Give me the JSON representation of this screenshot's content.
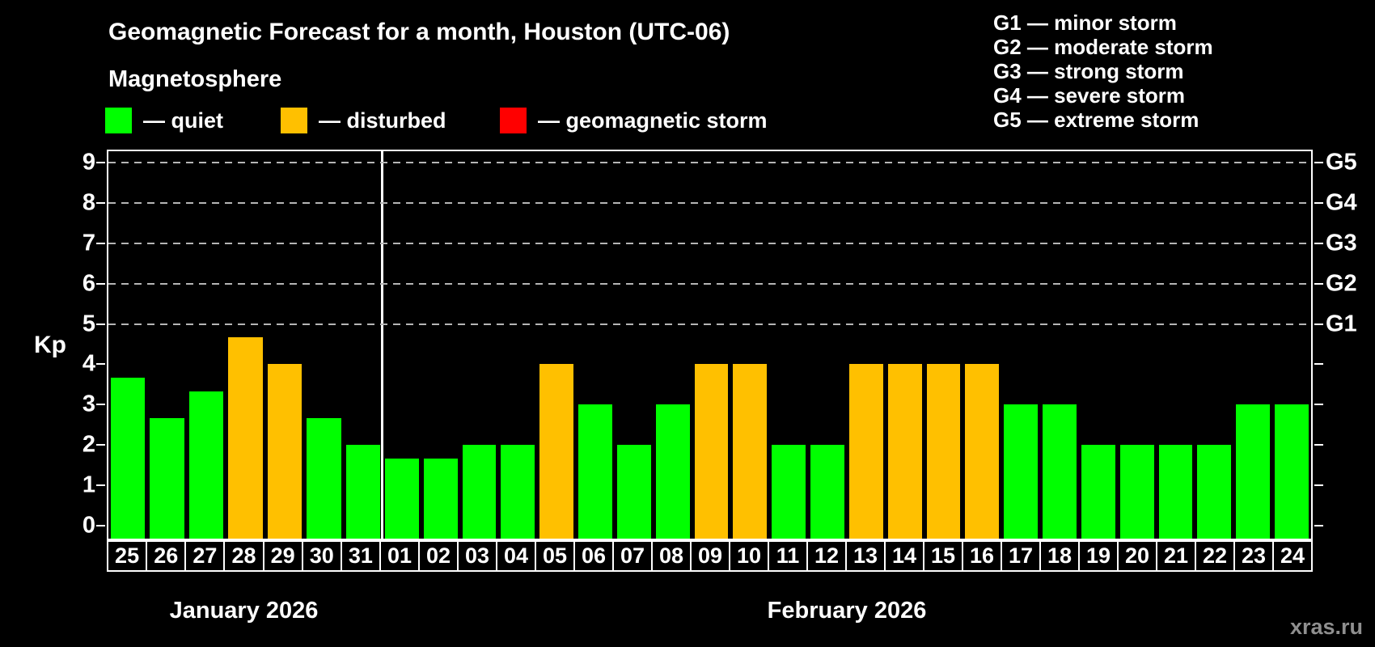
{
  "header": {
    "title": "Geomagnetic Forecast for a month, Houston (UTC-06)"
  },
  "legend": {
    "title": "Magnetosphere",
    "items": [
      {
        "label": "— quiet",
        "status": "quiet"
      },
      {
        "label": "— disturbed",
        "status": "disturbed"
      },
      {
        "label": "— geomagnetic storm",
        "status": "storm"
      }
    ]
  },
  "g_legend": {
    "items": [
      "G1 — minor storm",
      "G2 — moderate storm",
      "G3 — strong storm",
      "G4 — severe storm",
      "G5 — extreme storm"
    ]
  },
  "watermark": "xras.ru",
  "chart_data": {
    "type": "bar",
    "title": "Geomagnetic Forecast for a month, Houston (UTC-06)",
    "ylabel": "Kp",
    "ylim": [
      0,
      9
    ],
    "y_ticks": [
      0,
      1,
      2,
      3,
      4,
      5,
      6,
      7,
      8,
      9
    ],
    "gridlines": [
      5,
      6,
      7,
      8,
      9
    ],
    "grid": "dashed",
    "legend_position": "top",
    "g_scale": [
      {
        "kp": 5,
        "label": "G1"
      },
      {
        "kp": 6,
        "label": "G2"
      },
      {
        "kp": 7,
        "label": "G3"
      },
      {
        "kp": 8,
        "label": "G4"
      },
      {
        "kp": 9,
        "label": "G5"
      }
    ],
    "status_colors": {
      "quiet": "#00ff00",
      "disturbed": "#ffc000",
      "storm": "#ff0000"
    },
    "months": [
      {
        "label": "January 2026",
        "days": [
          {
            "day": "25",
            "kp": 3.67,
            "status": "quiet"
          },
          {
            "day": "26",
            "kp": 2.67,
            "status": "quiet"
          },
          {
            "day": "27",
            "kp": 3.33,
            "status": "quiet"
          },
          {
            "day": "28",
            "kp": 4.67,
            "status": "disturbed"
          },
          {
            "day": "29",
            "kp": 4.0,
            "status": "disturbed"
          },
          {
            "day": "30",
            "kp": 2.67,
            "status": "quiet"
          },
          {
            "day": "31",
            "kp": 2.0,
            "status": "quiet"
          }
        ]
      },
      {
        "label": "February 2026",
        "days": [
          {
            "day": "01",
            "kp": 1.67,
            "status": "quiet"
          },
          {
            "day": "02",
            "kp": 1.67,
            "status": "quiet"
          },
          {
            "day": "03",
            "kp": 2.0,
            "status": "quiet"
          },
          {
            "day": "04",
            "kp": 2.0,
            "status": "quiet"
          },
          {
            "day": "05",
            "kp": 4.0,
            "status": "disturbed"
          },
          {
            "day": "06",
            "kp": 3.0,
            "status": "quiet"
          },
          {
            "day": "07",
            "kp": 2.0,
            "status": "quiet"
          },
          {
            "day": "08",
            "kp": 3.0,
            "status": "quiet"
          },
          {
            "day": "09",
            "kp": 4.0,
            "status": "disturbed"
          },
          {
            "day": "10",
            "kp": 4.0,
            "status": "disturbed"
          },
          {
            "day": "11",
            "kp": 2.0,
            "status": "quiet"
          },
          {
            "day": "12",
            "kp": 2.0,
            "status": "quiet"
          },
          {
            "day": "13",
            "kp": 4.0,
            "status": "disturbed"
          },
          {
            "day": "14",
            "kp": 4.0,
            "status": "disturbed"
          },
          {
            "day": "15",
            "kp": 4.0,
            "status": "disturbed"
          },
          {
            "day": "16",
            "kp": 4.0,
            "status": "disturbed"
          },
          {
            "day": "17",
            "kp": 3.0,
            "status": "quiet"
          },
          {
            "day": "18",
            "kp": 3.0,
            "status": "quiet"
          },
          {
            "day": "19",
            "kp": 2.0,
            "status": "quiet"
          },
          {
            "day": "20",
            "kp": 2.0,
            "status": "quiet"
          },
          {
            "day": "21",
            "kp": 2.0,
            "status": "quiet"
          },
          {
            "day": "22",
            "kp": 2.0,
            "status": "quiet"
          },
          {
            "day": "23",
            "kp": 3.0,
            "status": "quiet"
          },
          {
            "day": "24",
            "kp": 3.0,
            "status": "quiet"
          }
        ]
      }
    ]
  }
}
